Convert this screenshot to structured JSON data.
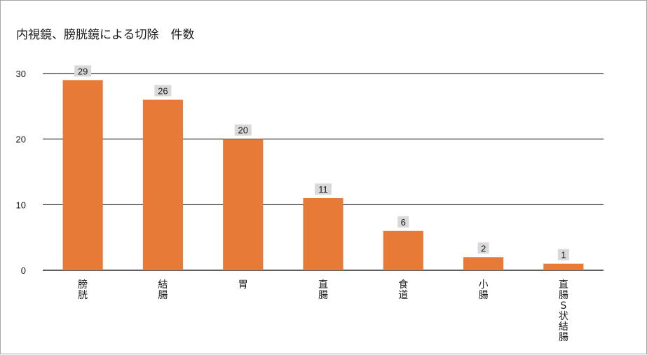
{
  "title": "内視鏡、膀胱鏡による切除　件数",
  "chart_data": {
    "type": "bar",
    "title": "内視鏡、膀胱鏡による切除　件数",
    "categories": [
      "膀胱",
      "結腸",
      "胃",
      "直腸",
      "食道",
      "小腸",
      "直腸S状結腸"
    ],
    "values": [
      29,
      26,
      20,
      11,
      6,
      2,
      1
    ],
    "yticks": [
      0,
      10,
      20,
      30
    ],
    "ylim": [
      0,
      30
    ],
    "xlabel": "",
    "ylabel": "",
    "grid": true,
    "data_labels": true,
    "legend": "none",
    "colors": {
      "bar": "#e77a37",
      "label_bg": "#d9d9d9",
      "grid": "#000000"
    }
  }
}
